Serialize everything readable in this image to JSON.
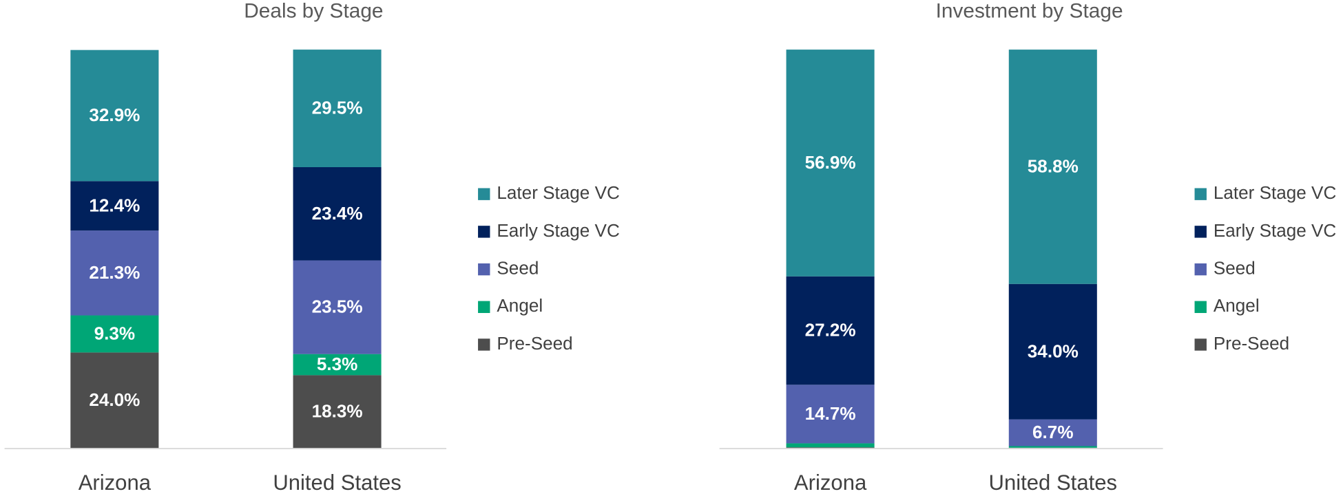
{
  "chart_data": [
    {
      "type": "stacked_bar",
      "title": "Deals by Stage",
      "categories": [
        "Arizona",
        "United States"
      ],
      "ylim": [
        0,
        100
      ],
      "series": [
        {
          "name": "Pre-Seed",
          "color": "#4d4d4d",
          "values": [
            24.0,
            18.3
          ],
          "value_labels": [
            "24.0%",
            "18.3%"
          ]
        },
        {
          "name": "Angel",
          "color": "#00a676",
          "values": [
            9.3,
            5.3
          ],
          "value_labels": [
            "9.3%",
            "5.3%"
          ]
        },
        {
          "name": "Seed",
          "color": "#5361ae",
          "values": [
            21.3,
            23.5
          ],
          "value_labels": [
            "21.3%",
            "23.5%"
          ]
        },
        {
          "name": "Early Stage VC",
          "color": "#01215c",
          "values": [
            12.4,
            23.4
          ],
          "value_labels": [
            "12.4%",
            "23.4%"
          ]
        },
        {
          "name": "Later Stage VC",
          "color": "#258b97",
          "values": [
            32.9,
            29.5
          ],
          "value_labels": [
            "32.9%",
            "29.5%"
          ]
        }
      ]
    },
    {
      "type": "stacked_bar",
      "title": "Investment by Stage",
      "categories": [
        "Arizona",
        "United States"
      ],
      "ylim": [
        0,
        100
      ],
      "series": [
        {
          "name": "Pre-Seed",
          "color": "#4d4d4d",
          "values": [
            0.2,
            0.1
          ],
          "value_labels": [
            null,
            null
          ]
        },
        {
          "name": "Angel",
          "color": "#00a676",
          "values": [
            1.0,
            0.4
          ],
          "value_labels": [
            null,
            null
          ]
        },
        {
          "name": "Seed",
          "color": "#5361ae",
          "values": [
            14.7,
            6.7
          ],
          "value_labels": [
            "14.7%",
            "6.7%"
          ]
        },
        {
          "name": "Early Stage VC",
          "color": "#01215c",
          "values": [
            27.2,
            34.0
          ],
          "value_labels": [
            "27.2%",
            "34.0%"
          ]
        },
        {
          "name": "Later Stage VC",
          "color": "#258b97",
          "values": [
            56.9,
            58.8
          ],
          "value_labels": [
            "56.9%",
            "58.8%"
          ]
        }
      ]
    }
  ]
}
